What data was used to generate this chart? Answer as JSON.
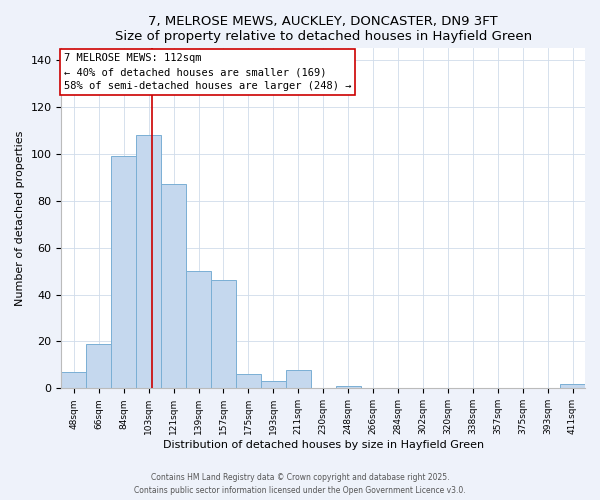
{
  "title": "7, MELROSE MEWS, AUCKLEY, DONCASTER, DN9 3FT",
  "subtitle": "Size of property relative to detached houses in Hayfield Green",
  "xlabel": "Distribution of detached houses by size in Hayfield Green",
  "ylabel": "Number of detached properties",
  "bar_color": "#c5d8ee",
  "bar_edge_color": "#7aafd4",
  "categories": [
    "48sqm",
    "66sqm",
    "84sqm",
    "103sqm",
    "121sqm",
    "139sqm",
    "157sqm",
    "175sqm",
    "193sqm",
    "211sqm",
    "230sqm",
    "248sqm",
    "266sqm",
    "284sqm",
    "302sqm",
    "320sqm",
    "338sqm",
    "357sqm",
    "375sqm",
    "393sqm",
    "411sqm"
  ],
  "values": [
    7,
    19,
    99,
    108,
    87,
    50,
    46,
    6,
    3,
    8,
    0,
    1,
    0,
    0,
    0,
    0,
    0,
    0,
    0,
    0,
    2
  ],
  "ylim": [
    0,
    145
  ],
  "yticks": [
    0,
    20,
    40,
    60,
    80,
    100,
    120,
    140
  ],
  "vline_x_index": 3,
  "vline_color": "#cc0000",
  "annotation_text_line1": "7 MELROSE MEWS: 112sqm",
  "annotation_text_line2": "← 40% of detached houses are smaller (169)",
  "annotation_text_line3": "58% of semi-detached houses are larger (248) →",
  "footer1": "Contains HM Land Registry data © Crown copyright and database right 2025.",
  "footer2": "Contains public sector information licensed under the Open Government Licence v3.0.",
  "background_color": "#eef2fa",
  "plot_background": "#ffffff",
  "grid_color": "#d0dcea"
}
